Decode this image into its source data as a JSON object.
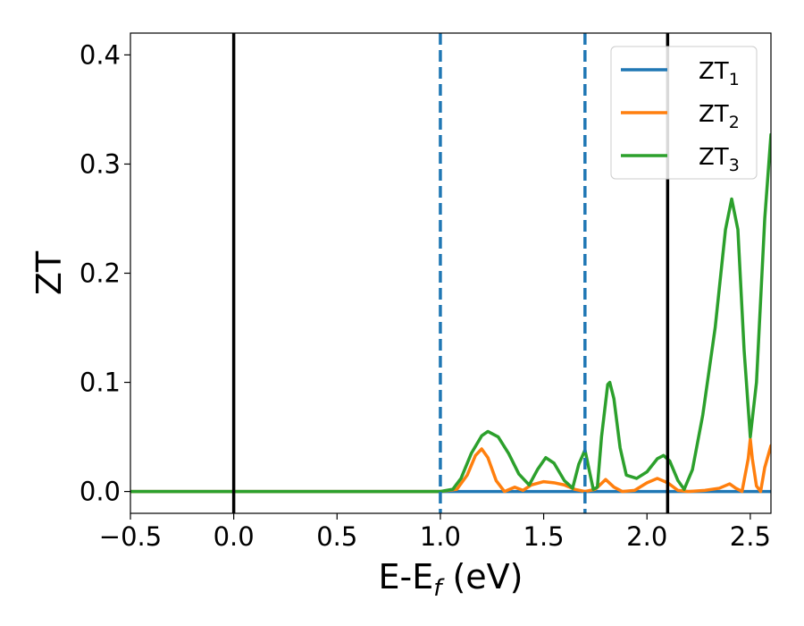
{
  "chart_data": {
    "type": "line",
    "xlabel": "E-E",
    "xlabel_sub": "f",
    "xlabel_unit": "(eV)",
    "ylabel": "ZT",
    "xlim": [
      -0.5,
      2.6
    ],
    "ylim": [
      -0.02,
      0.42
    ],
    "x_ticks": [
      -0.5,
      0.0,
      0.5,
      1.0,
      1.5,
      2.0,
      2.5
    ],
    "x_tick_labels": [
      "−0.5",
      "0.0",
      "0.5",
      "1.0",
      "1.5",
      "2.0",
      "2.5"
    ],
    "y_ticks": [
      0.0,
      0.1,
      0.2,
      0.3,
      0.4
    ],
    "y_tick_labels": [
      "0.0",
      "0.1",
      "0.2",
      "0.3",
      "0.4"
    ],
    "grid": false,
    "legend_position": "top-right",
    "vlines": [
      {
        "x": 0.0,
        "style": "solid",
        "color": "#000000"
      },
      {
        "x": 2.1,
        "style": "solid",
        "color": "#000000"
      },
      {
        "x": 1.0,
        "style": "dashed",
        "color": "#1f77b4"
      },
      {
        "x": 1.7,
        "style": "dashed",
        "color": "#1f77b4"
      }
    ],
    "series": [
      {
        "name": "ZT",
        "sub": "1",
        "color": "#1f77b4",
        "points": [
          [
            -0.5,
            0.0
          ],
          [
            2.6,
            0.0
          ]
        ]
      },
      {
        "name": "ZT",
        "sub": "2",
        "color": "#ff7f0e",
        "points": [
          [
            -0.5,
            0.0
          ],
          [
            1.0,
            0.0
          ],
          [
            1.08,
            0.002
          ],
          [
            1.13,
            0.015
          ],
          [
            1.17,
            0.033
          ],
          [
            1.2,
            0.039
          ],
          [
            1.23,
            0.031
          ],
          [
            1.27,
            0.01
          ],
          [
            1.31,
            0.0
          ],
          [
            1.36,
            0.004
          ],
          [
            1.4,
            0.001
          ],
          [
            1.44,
            0.006
          ],
          [
            1.5,
            0.009
          ],
          [
            1.55,
            0.008
          ],
          [
            1.6,
            0.006
          ],
          [
            1.65,
            0.002
          ],
          [
            1.7,
            0.0
          ],
          [
            1.75,
            0.002
          ],
          [
            1.8,
            0.011
          ],
          [
            1.84,
            0.004
          ],
          [
            1.88,
            0.0
          ],
          [
            1.94,
            0.001
          ],
          [
            2.0,
            0.008
          ],
          [
            2.05,
            0.012
          ],
          [
            2.1,
            0.008
          ],
          [
            2.15,
            0.001
          ],
          [
            2.2,
            0.0
          ],
          [
            2.28,
            0.001
          ],
          [
            2.35,
            0.003
          ],
          [
            2.4,
            0.007
          ],
          [
            2.43,
            0.003
          ],
          [
            2.46,
            0.0
          ],
          [
            2.49,
            0.03
          ],
          [
            2.5,
            0.048
          ],
          [
            2.51,
            0.03
          ],
          [
            2.53,
            0.005
          ],
          [
            2.55,
            0.0
          ],
          [
            2.57,
            0.022
          ],
          [
            2.6,
            0.042
          ]
        ]
      },
      {
        "name": "ZT",
        "sub": "3",
        "color": "#2ca02c",
        "points": [
          [
            -0.5,
            0.0
          ],
          [
            1.0,
            0.0
          ],
          [
            1.06,
            0.002
          ],
          [
            1.1,
            0.012
          ],
          [
            1.15,
            0.035
          ],
          [
            1.2,
            0.051
          ],
          [
            1.23,
            0.055
          ],
          [
            1.28,
            0.05
          ],
          [
            1.33,
            0.035
          ],
          [
            1.38,
            0.016
          ],
          [
            1.43,
            0.006
          ],
          [
            1.47,
            0.02
          ],
          [
            1.51,
            0.031
          ],
          [
            1.55,
            0.026
          ],
          [
            1.6,
            0.01
          ],
          [
            1.64,
            0.003
          ],
          [
            1.67,
            0.025
          ],
          [
            1.7,
            0.038
          ],
          [
            1.72,
            0.02
          ],
          [
            1.74,
            0.002
          ],
          [
            1.76,
            0.004
          ],
          [
            1.78,
            0.05
          ],
          [
            1.81,
            0.098
          ],
          [
            1.82,
            0.1
          ],
          [
            1.84,
            0.085
          ],
          [
            1.87,
            0.04
          ],
          [
            1.9,
            0.015
          ],
          [
            1.95,
            0.012
          ],
          [
            2.0,
            0.018
          ],
          [
            2.05,
            0.03
          ],
          [
            2.08,
            0.033
          ],
          [
            2.11,
            0.028
          ],
          [
            2.15,
            0.01
          ],
          [
            2.18,
            0.002
          ],
          [
            2.22,
            0.02
          ],
          [
            2.27,
            0.07
          ],
          [
            2.33,
            0.15
          ],
          [
            2.38,
            0.24
          ],
          [
            2.41,
            0.268
          ],
          [
            2.44,
            0.24
          ],
          [
            2.47,
            0.13
          ],
          [
            2.5,
            0.05
          ],
          [
            2.53,
            0.1
          ],
          [
            2.57,
            0.25
          ],
          [
            2.6,
            0.327
          ]
        ]
      }
    ]
  }
}
